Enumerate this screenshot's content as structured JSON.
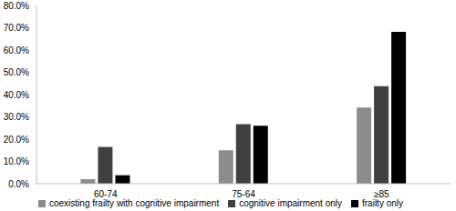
{
  "chart_data": {
    "type": "bar",
    "categories": [
      "60-74",
      "75-64",
      "≥85"
    ],
    "series": [
      {
        "name": "coexisting frailty with cognitive impairment",
        "color": "#8c8c8c",
        "values": [
          2.0,
          15.0,
          34.2
        ]
      },
      {
        "name": "cognitive impairment  only",
        "color": "#404040",
        "values": [
          16.5,
          26.7,
          43.8
        ]
      },
      {
        "name": "frailty only",
        "color": "#000000",
        "values": [
          3.8,
          26.0,
          68.2
        ]
      }
    ],
    "ylim": [
      0,
      80
    ],
    "yticks": [
      {
        "value": 0,
        "label": "0.0%"
      },
      {
        "value": 10,
        "label": "10.0%"
      },
      {
        "value": 20,
        "label": "20.0%"
      },
      {
        "value": 30,
        "label": "30.0%"
      },
      {
        "value": 40,
        "label": "40.0%"
      },
      {
        "value": 50,
        "label": "50.0%"
      },
      {
        "value": 60,
        "label": "60.0%"
      },
      {
        "value": 70,
        "label": "70.0%"
      },
      {
        "value": 80,
        "label": "80.0%"
      }
    ],
    "grid": false,
    "legend": "bottom"
  }
}
